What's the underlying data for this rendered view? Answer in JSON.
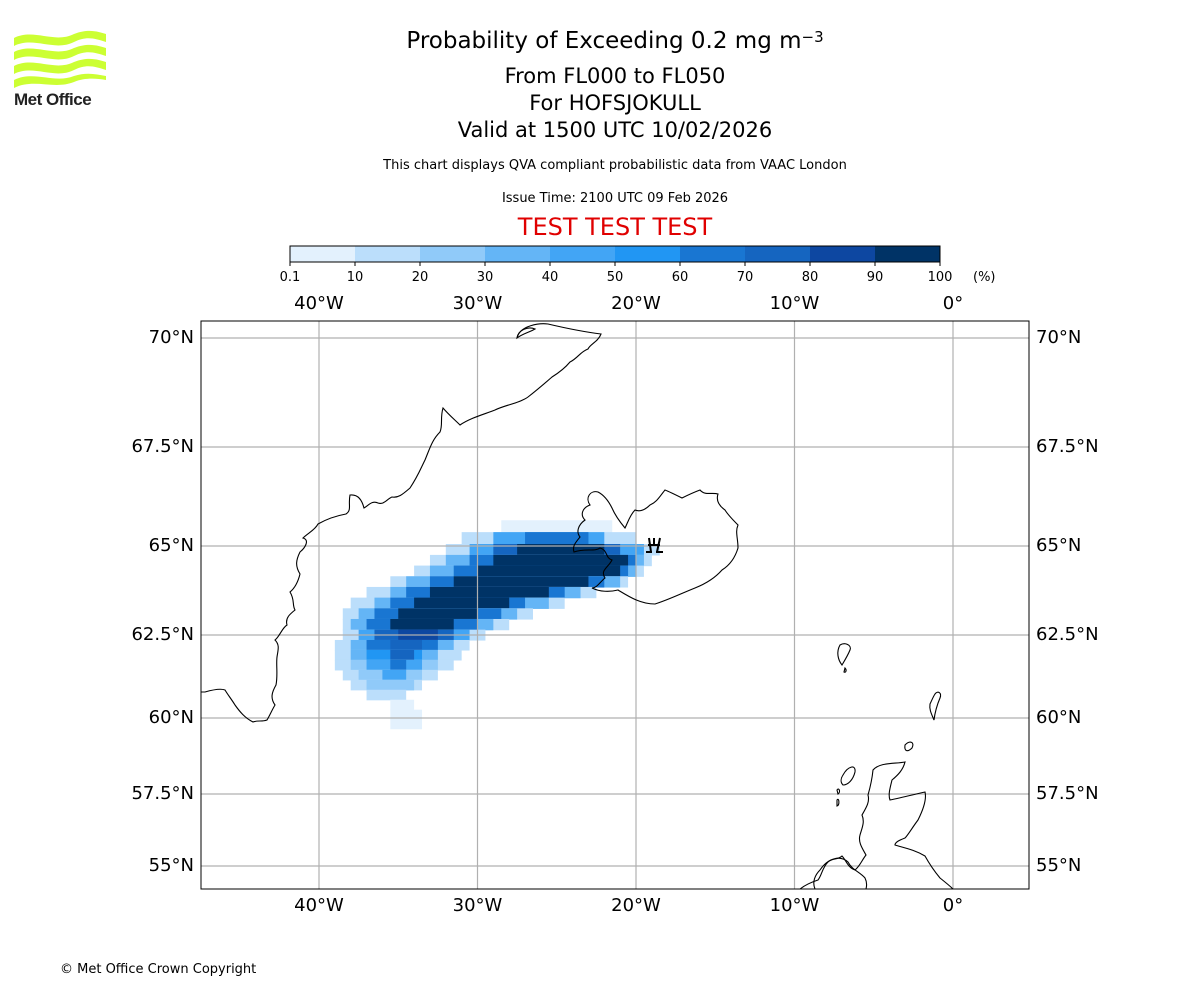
{
  "header": {
    "title_main": "Probability of Exceeding 0.2 mg m",
    "title_unit_exponent": "−3",
    "flight_levels": "From FL000 to FL050",
    "volcano": "For HOFSJOKULL",
    "valid_time": "Valid at 1500 UTC 10/02/2026",
    "description": "This chart displays QVA compliant probabilistic data from VAAC London",
    "issue_time": "Issue Time: 2100 UTC 09 Feb 2026",
    "test_banner": "TEST TEST TEST",
    "test_color": "#e00000"
  },
  "logo": {
    "name": "Met Office",
    "brand_color": "#ccff33"
  },
  "colorbar": {
    "ticks": [
      "0.1",
      "10",
      "20",
      "30",
      "40",
      "50",
      "60",
      "70",
      "80",
      "90",
      "100"
    ],
    "unit": "(%)",
    "colors": [
      "#e3f1fd",
      "#bbdefb",
      "#90caf9",
      "#64b5f6",
      "#42a5f5",
      "#2196f3",
      "#1976d2",
      "#1565c0",
      "#0d47a1",
      "#003366"
    ]
  },
  "map": {
    "lon_ticks": [
      "40°W",
      "30°W",
      "20°W",
      "10°W",
      "0°"
    ],
    "lat_ticks": [
      "70°N",
      "67.5°N",
      "65°N",
      "62.5°N",
      "60°N",
      "57.5°N",
      "55°N"
    ],
    "volcano_marker": "volcano-symbol"
  },
  "chart_data": {
    "type": "heatmap",
    "title": "Probability of Exceeding 0.2 mg m-3, From FL000 to FL050, For HOFSJOKULL, Valid at 1500 UTC 10/02/2026",
    "units": "%",
    "levels": [
      0.1,
      10,
      20,
      30,
      40,
      50,
      60,
      70,
      80,
      90,
      100
    ],
    "lon_range": [
      -47.5,
      4.7
    ],
    "lat_range": [
      54.5,
      70.5
    ],
    "volcano": {
      "name": "HOFSJOKULL",
      "lon": -18.9,
      "lat": 64.8
    },
    "plume_bands": [
      {
        "lat": 65.5,
        "cells": [
          [
            -28.5,
            -21.5,
            5
          ]
        ]
      },
      {
        "lat": 65.2,
        "cells": [
          [
            -31,
            -20,
            15
          ],
          [
            -29,
            -22,
            45
          ],
          [
            -27,
            -23,
            65
          ]
        ]
      },
      {
        "lat": 64.9,
        "cells": [
          [
            -32,
            -18.5,
            15
          ],
          [
            -30.5,
            -19.5,
            45
          ],
          [
            -29,
            -21,
            75
          ],
          [
            -27.5,
            -22,
            95
          ]
        ]
      },
      {
        "lat": 64.6,
        "cells": [
          [
            -33,
            -19,
            15
          ],
          [
            -32,
            -19.5,
            35
          ],
          [
            -30.5,
            -20,
            65
          ],
          [
            -29,
            -20.5,
            95
          ]
        ]
      },
      {
        "lat": 64.3,
        "cells": [
          [
            -34,
            -19.5,
            15
          ],
          [
            -33,
            -20,
            35
          ],
          [
            -31.5,
            -20.5,
            65
          ],
          [
            -30,
            -21,
            95
          ]
        ]
      },
      {
        "lat": 64.0,
        "cells": [
          [
            -35.5,
            -20.5,
            15
          ],
          [
            -34.5,
            -21,
            35
          ],
          [
            -33,
            -22,
            65
          ],
          [
            -31.5,
            -23,
            95
          ]
        ]
      },
      {
        "lat": 63.7,
        "cells": [
          [
            -37,
            -22.5,
            15
          ],
          [
            -35.5,
            -23.5,
            35
          ],
          [
            -34.5,
            -24.5,
            65
          ],
          [
            -33,
            -25.5,
            95
          ]
        ]
      },
      {
        "lat": 63.4,
        "cells": [
          [
            -38,
            -24.5,
            15
          ],
          [
            -36.5,
            -25.5,
            35
          ],
          [
            -35.5,
            -27,
            65
          ],
          [
            -34,
            -28,
            95
          ]
        ]
      },
      {
        "lat": 63.1,
        "cells": [
          [
            -38.5,
            -26.5,
            15
          ],
          [
            -37.5,
            -27.5,
            35
          ],
          [
            -36.5,
            -28.5,
            65
          ],
          [
            -35,
            -30,
            95
          ]
        ]
      },
      {
        "lat": 62.8,
        "cells": [
          [
            -38.5,
            -28,
            15
          ],
          [
            -38,
            -29,
            35
          ],
          [
            -37,
            -30,
            65
          ],
          [
            -35.5,
            -31.5,
            95
          ]
        ]
      },
      {
        "lat": 62.5,
        "cells": [
          [
            -38.5,
            -29.5,
            15
          ],
          [
            -37.5,
            -30.5,
            45
          ],
          [
            -36.5,
            -31.5,
            75
          ],
          [
            -35,
            -32.5,
            85
          ]
        ]
      },
      {
        "lat": 62.2,
        "cells": [
          [
            -39,
            -30.5,
            10
          ],
          [
            -38,
            -31.5,
            35
          ],
          [
            -37,
            -32.5,
            65
          ],
          [
            -35.5,
            -33.5,
            75
          ]
        ]
      },
      {
        "lat": 61.9,
        "cells": [
          [
            -39,
            -31,
            10
          ],
          [
            -38,
            -32.5,
            35
          ],
          [
            -37,
            -33.5,
            55
          ],
          [
            -35.5,
            -34,
            75
          ]
        ]
      },
      {
        "lat": 61.6,
        "cells": [
          [
            -39,
            -31.5,
            10
          ],
          [
            -38,
            -32.5,
            25
          ],
          [
            -37,
            -33.5,
            45
          ],
          [
            -35.5,
            -34.5,
            65
          ]
        ]
      },
      {
        "lat": 61.3,
        "cells": [
          [
            -38.5,
            -32.5,
            10
          ],
          [
            -37.5,
            -33.5,
            25
          ],
          [
            -36,
            -34.5,
            45
          ]
        ]
      },
      {
        "lat": 61.0,
        "cells": [
          [
            -38,
            -33.5,
            10
          ],
          [
            -37,
            -34,
            25
          ]
        ]
      },
      {
        "lat": 60.7,
        "cells": [
          [
            -37,
            -34.5,
            10
          ]
        ]
      },
      {
        "lat": 60.4,
        "cells": [
          [
            -35.5,
            -34,
            5
          ]
        ]
      },
      {
        "lat": 60.1,
        "cells": [
          [
            -35.5,
            -33.5,
            5
          ]
        ]
      },
      {
        "lat": 59.8,
        "cells": [
          [
            -35.5,
            -33.5,
            5
          ]
        ]
      }
    ]
  },
  "footer": {
    "copyright": "© Met Office Crown Copyright"
  }
}
